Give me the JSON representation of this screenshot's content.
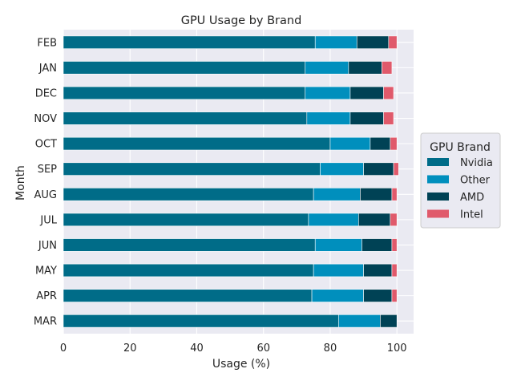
{
  "chart_data": {
    "type": "bar",
    "orientation": "horizontal",
    "stacked": true,
    "title": "GPU Usage by Brand",
    "xlabel": "Usage (%)",
    "ylabel": "Month",
    "xlim": [
      0,
      105
    ],
    "xticks": [
      0,
      20,
      40,
      60,
      80,
      100
    ],
    "grid": true,
    "categories": [
      "MAR",
      "APR",
      "MAY",
      "JUN",
      "JUL",
      "AUG",
      "SEP",
      "OCT",
      "NOV",
      "DEC",
      "JAN",
      "FEB"
    ],
    "series": [
      {
        "name": "Nvidia",
        "color": "#006c88",
        "values": [
          82.5,
          74.5,
          75,
          75.5,
          73.5,
          75,
          77,
          80,
          73,
          72.5,
          72.5,
          75.5
        ]
      },
      {
        "name": "Other",
        "color": "#008fbd",
        "values": [
          12.5,
          15.5,
          15,
          14,
          15,
          14,
          13,
          12,
          13,
          13.5,
          13,
          12.5
        ]
      },
      {
        "name": "AMD",
        "color": "#004255",
        "values": [
          5,
          8.5,
          8.5,
          9,
          9.5,
          9.5,
          9,
          6,
          10,
          10,
          10,
          9.5
        ]
      },
      {
        "name": "Intel",
        "color": "#e05a6b",
        "values": [
          0,
          1.5,
          1.5,
          1.5,
          2,
          1.5,
          1.5,
          2,
          3,
          3,
          3,
          2.5
        ]
      }
    ],
    "legend": {
      "title": "GPU Brand",
      "placement": "right"
    }
  }
}
